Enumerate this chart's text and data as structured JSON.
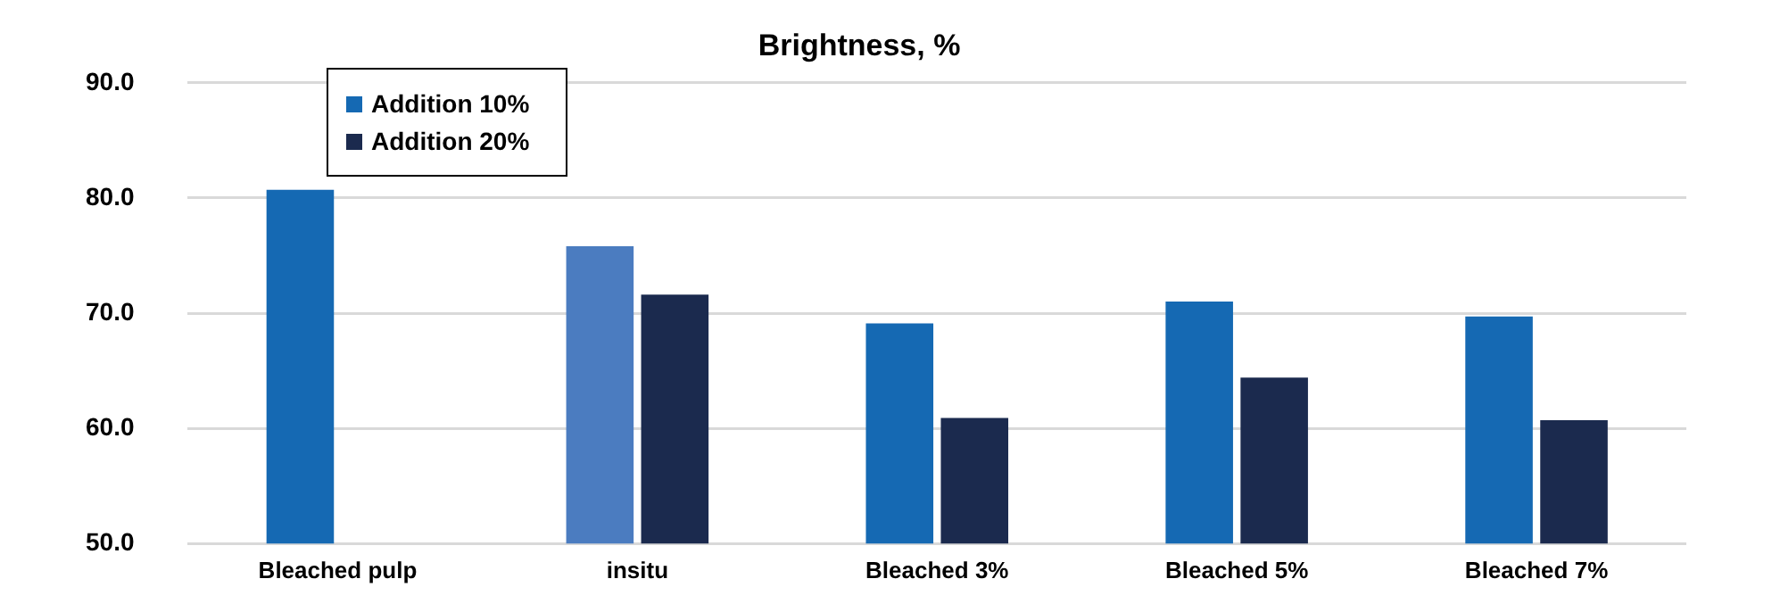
{
  "chart_data": {
    "type": "bar",
    "title": "Brightness, %",
    "categories": [
      "Bleached pulp",
      "insitu",
      "Bleached 3%",
      "Bleached 5%",
      "Bleached 7%"
    ],
    "series": [
      {
        "name": "Addition 10%",
        "color": "#1569b3",
        "colors": [
          "#1569b3",
          "#4b7cc0",
          "#1569b3",
          "#1569b3",
          "#1569b3"
        ],
        "values": [
          80.7,
          75.8,
          69.1,
          71.0,
          69.7
        ]
      },
      {
        "name": "Addition 20%",
        "color": "#1b2a4e",
        "values": [
          null,
          71.6,
          60.9,
          64.4,
          60.7
        ]
      }
    ],
    "ylim": [
      50,
      90
    ],
    "yticks": [
      {
        "value": 50,
        "label": "50.0"
      },
      {
        "value": 60,
        "label": "60.0"
      },
      {
        "value": 70,
        "label": "70.0"
      },
      {
        "value": 80,
        "label": "80.0"
      },
      {
        "value": 90,
        "label": "90.0"
      }
    ],
    "grid": "y",
    "legend": "top left"
  }
}
